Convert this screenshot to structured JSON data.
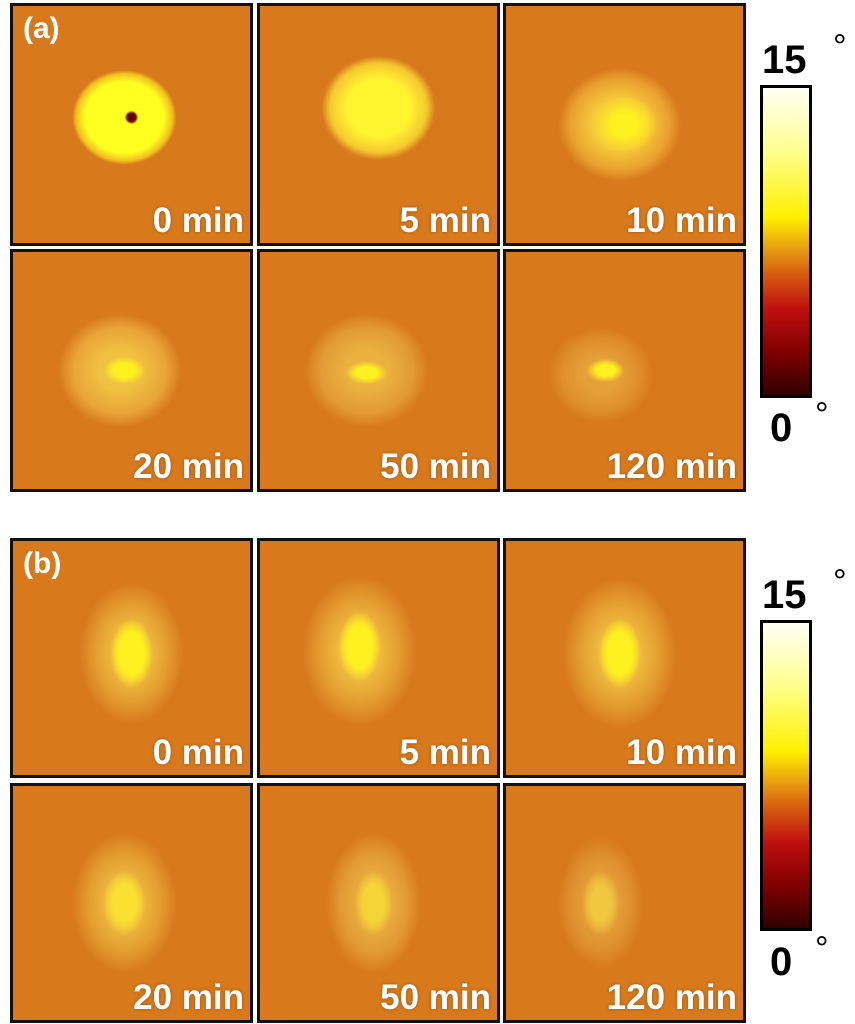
{
  "panels": [
    {
      "label": "(a)",
      "images": [
        "0 min",
        "5 min",
        "10 min",
        "20 min",
        "50 min",
        "120 min"
      ],
      "colorbar": {
        "max": 15,
        "min": 0,
        "unit": "°"
      }
    },
    {
      "label": "(b)",
      "images": [
        "0 min",
        "5 min",
        "10 min",
        "20 min",
        "50 min",
        "120 min"
      ],
      "colorbar": {
        "max": 15,
        "min": 0,
        "unit": "°"
      }
    }
  ]
}
